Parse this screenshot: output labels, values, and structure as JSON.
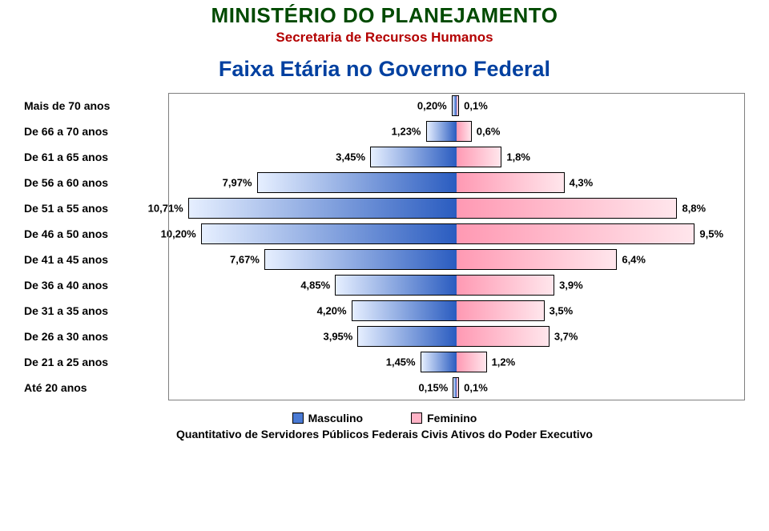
{
  "header": {
    "main": "MINISTÉRIO DO PLANEJAMENTO",
    "main_color": "#004a00",
    "main_fontsize": 26,
    "sub": "Secretaria de Recursos Humanos",
    "sub_color": "#b30000",
    "sub_fontsize": 17,
    "chart_title": "Faixa Etária no Governo Federal",
    "chart_title_color": "#0040a0",
    "chart_title_fontsize": 27
  },
  "pyramid": {
    "type": "population-pyramid",
    "label_color": "#000000",
    "value_color": "#000000",
    "male_gradient_from": "#e6efff",
    "male_gradient_to": "#2a5cc0",
    "female_gradient_from": "#ff99b3",
    "female_gradient_to": "#ffe6ec",
    "border_color": "#000000",
    "frame_color": "#7f7f7f",
    "max_percent": 11.5,
    "rows": [
      {
        "label": "Mais de 70 anos",
        "left": "0,20%",
        "left_v": 0.2,
        "right": "0,1%",
        "right_v": 0.1
      },
      {
        "label": "De 66 a 70 anos",
        "left": "1,23%",
        "left_v": 1.23,
        "right": "0,6%",
        "right_v": 0.6
      },
      {
        "label": "De 61 a 65 anos",
        "left": "3,45%",
        "left_v": 3.45,
        "right": "1,8%",
        "right_v": 1.8
      },
      {
        "label": "De 56 a 60 anos",
        "left": "7,97%",
        "left_v": 7.97,
        "right": "4,3%",
        "right_v": 4.3
      },
      {
        "label": "De 51 a 55 anos",
        "left": "10,71%",
        "left_v": 10.71,
        "right": "8,8%",
        "right_v": 8.8
      },
      {
        "label": "De 46 a 50 anos",
        "left": "10,20%",
        "left_v": 10.2,
        "right": "9,5%",
        "right_v": 9.5
      },
      {
        "label": "De 41 a 45 anos",
        "left": "7,67%",
        "left_v": 7.67,
        "right": "6,4%",
        "right_v": 6.4
      },
      {
        "label": "De 36 a 40 anos",
        "left": "4,85%",
        "left_v": 4.85,
        "right": "3,9%",
        "right_v": 3.9
      },
      {
        "label": "De 31 a 35 anos",
        "left": "4,20%",
        "left_v": 4.2,
        "right": "3,5%",
        "right_v": 3.5
      },
      {
        "label": "De 26 a 30 anos",
        "left": "3,95%",
        "left_v": 3.95,
        "right": "3,7%",
        "right_v": 3.7
      },
      {
        "label": "De 21 a 25 anos",
        "left": "1,45%",
        "left_v": 1.45,
        "right": "1,2%",
        "right_v": 1.2
      },
      {
        "label": "Até 20 anos",
        "left": "0,15%",
        "left_v": 0.15,
        "right": "0,1%",
        "right_v": 0.1
      }
    ]
  },
  "legend": {
    "male": "Masculino",
    "male_swatch": "#4a7ad4",
    "female": "Feminino",
    "female_swatch": "#ffb3c6"
  },
  "footer": {
    "note": "Quantitativo de Servidores Públicos Federais Civis Ativos do Poder Executivo",
    "color": "#000000"
  }
}
